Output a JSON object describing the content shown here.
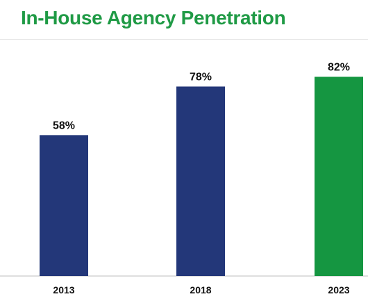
{
  "chart_data": {
    "type": "bar",
    "title": "In-House Agency Penetration",
    "categories": [
      "2013",
      "2018",
      "2023"
    ],
    "values": [
      58,
      78,
      82
    ],
    "value_labels": [
      "58%",
      "78%",
      "82%"
    ],
    "unit": "%",
    "ylim": [
      0,
      100
    ],
    "grid": false,
    "colors": [
      "#233779",
      "#233779",
      "#159641"
    ]
  },
  "colors": {
    "title": "#1f9a45",
    "baseline": "#bdbdbd"
  }
}
